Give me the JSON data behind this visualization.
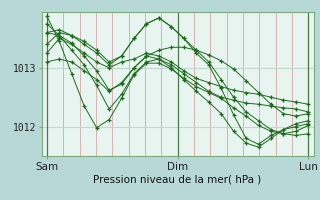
{
  "bg_color": "#b8d8d8",
  "plot_bg_color": "#e8f4f0",
  "vgrid_color": "#d4a8a8",
  "hgrid_color": "#c0d8d0",
  "line_color": "#1a6b1a",
  "marker_color": "#1a6b1a",
  "xlabel": "Pression niveau de la mer( hPa )",
  "xtick_labels": [
    "Sam",
    "Dim",
    "Lun"
  ],
  "xtick_positions": [
    0.0,
    1.0,
    2.0
  ],
  "ytick_labels": [
    "1012",
    "1013"
  ],
  "ytick_positions": [
    1012,
    1013
  ],
  "ylim": [
    1011.5,
    1013.95
  ],
  "xlim": [
    -0.04,
    2.04
  ],
  "series": [
    [
      1013.75,
      1013.55,
      1013.3,
      1013.05,
      1012.7,
      1012.3,
      1012.55,
      1012.9,
      1013.1,
      1013.15,
      1013.05,
      1012.9,
      1012.75,
      1012.6,
      1012.5,
      1012.45,
      1012.4,
      1012.38,
      1012.35,
      1012.32,
      1012.3,
      1012.25
    ],
    [
      1013.6,
      1013.65,
      1013.55,
      1013.4,
      1013.25,
      1013.05,
      1013.2,
      1013.5,
      1013.75,
      1013.85,
      1013.7,
      1013.5,
      1013.3,
      1013.1,
      1012.8,
      1012.5,
      1012.25,
      1012.1,
      1011.95,
      1011.88,
      1011.85,
      1011.88
    ],
    [
      1013.4,
      1013.6,
      1013.55,
      1013.45,
      1013.3,
      1013.1,
      1013.2,
      1013.5,
      1013.75,
      1013.85,
      1013.7,
      1013.5,
      1013.25,
      1013.05,
      1012.65,
      1012.2,
      1011.8,
      1011.7,
      1011.85,
      1011.95,
      1012.0,
      1012.05
    ],
    [
      1013.25,
      1013.5,
      1013.4,
      1013.25,
      1013.1,
      1013.0,
      1013.1,
      1013.15,
      1013.25,
      1013.2,
      1013.1,
      1012.95,
      1012.82,
      1012.75,
      1012.68,
      1012.62,
      1012.58,
      1012.55,
      1012.5,
      1012.45,
      1012.42,
      1012.38
    ],
    [
      1013.1,
      1013.15,
      1013.1,
      1012.95,
      1012.8,
      1012.6,
      1012.75,
      1013.0,
      1013.2,
      1013.15,
      1013.0,
      1012.8,
      1012.6,
      1012.42,
      1012.22,
      1011.92,
      1011.72,
      1011.65,
      1011.8,
      1011.95,
      1012.05,
      1012.1
    ],
    [
      1013.6,
      1013.55,
      1013.42,
      1013.2,
      1012.95,
      1012.62,
      1012.72,
      1013.0,
      1013.2,
      1013.3,
      1013.35,
      1013.35,
      1013.3,
      1013.22,
      1013.12,
      1012.98,
      1012.78,
      1012.58,
      1012.38,
      1012.22,
      1012.18,
      1012.22
    ],
    [
      1013.88,
      1013.45,
      1012.9,
      1012.35,
      1011.98,
      1012.12,
      1012.48,
      1012.88,
      1013.08,
      1013.08,
      1012.98,
      1012.82,
      1012.68,
      1012.58,
      1012.48,
      1012.32,
      1012.18,
      1012.02,
      1011.92,
      1011.88,
      1011.92,
      1012.02
    ]
  ],
  "n_vgrid": 16,
  "n_points": 22,
  "spine_color": "#7aaa7a",
  "sep_color": "#4a7a4a"
}
